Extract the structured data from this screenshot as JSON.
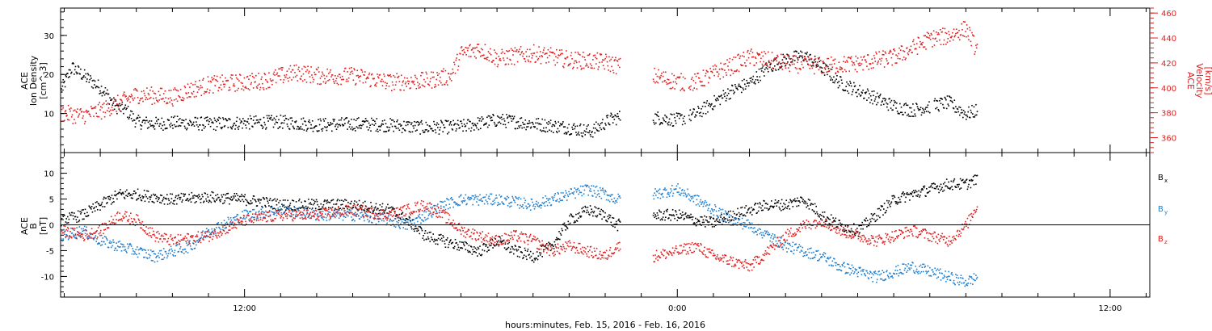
{
  "time_axis": {
    "label": "hours:minutes, Feb. 15, 2016 - Feb. 16, 2016",
    "ticks": [
      {
        "hour": 12,
        "label": "12:00"
      },
      {
        "hour": 24,
        "label": "0:00"
      },
      {
        "hour": 36,
        "label": "12:00"
      }
    ]
  },
  "colors": {
    "black": "#000000",
    "red": "#e02020",
    "blue": "#1e7fd0"
  },
  "chart_data": [
    {
      "type": "scatter",
      "panel": "top",
      "left_axis": {
        "label_line1": "ACE",
        "label_line2": "Ion Density",
        "label_line3": "[cm^-3]",
        "ticks": [
          10,
          20,
          30
        ],
        "ylim": [
          0,
          37
        ]
      },
      "right_axis": {
        "label_line1": "ACE",
        "label_line2": "Velocity",
        "label_line3": "[km/s]",
        "ticks": [
          360,
          380,
          400,
          420,
          440,
          460
        ],
        "ylim": [
          348,
          464
        ]
      },
      "x_range_hours": [
        6.9,
        37.1
      ],
      "series": [
        {
          "key": "density",
          "axis": "left",
          "color": "#000000",
          "points": [
            [
              6.9,
              16
            ],
            [
              7.2,
              22
            ],
            [
              7.5,
              20
            ],
            [
              7.8,
              18
            ],
            [
              8.1,
              16
            ],
            [
              8.4,
              12
            ],
            [
              8.7,
              11
            ],
            [
              9.0,
              8
            ],
            [
              9.5,
              7.5
            ],
            [
              10.0,
              7.8
            ],
            [
              11.0,
              7.5
            ],
            [
              12.0,
              7.8
            ],
            [
              13.0,
              8
            ],
            [
              14.0,
              7.2
            ],
            [
              15.0,
              7.5
            ],
            [
              16.0,
              7.2
            ],
            [
              17.0,
              6.5
            ],
            [
              18.0,
              6.8
            ],
            [
              19.0,
              8.5
            ],
            [
              20.0,
              7.5
            ],
            [
              21.0,
              6.5
            ],
            [
              21.6,
              5.5
            ],
            [
              22.1,
              8.5
            ],
            [
              22.5,
              9.5
            ],
            [
              23.5,
              9
            ],
            [
              24.0,
              8.5
            ],
            [
              24.5,
              10
            ],
            [
              25.0,
              13
            ],
            [
              25.5,
              16
            ],
            [
              26.0,
              18
            ],
            [
              26.5,
              22
            ],
            [
              27.0,
              24
            ],
            [
              27.5,
              25
            ],
            [
              28.0,
              22
            ],
            [
              28.5,
              18
            ],
            [
              29.0,
              16
            ],
            [
              29.5,
              14
            ],
            [
              30.0,
              12
            ],
            [
              30.5,
              11
            ],
            [
              31.0,
              12
            ],
            [
              31.5,
              13
            ],
            [
              32.0,
              10
            ],
            [
              32.3,
              11
            ]
          ],
          "gaps": [
            [
              22.4,
              23.3
            ],
            [
              24.2,
              24.3
            ],
            [
              31.0,
              31.1
            ]
          ]
        },
        {
          "key": "velocity",
          "axis": "right",
          "color": "#e02020",
          "points": [
            [
              6.9,
              380
            ],
            [
              7.5,
              378
            ],
            [
              8.0,
              382
            ],
            [
              8.5,
              388
            ],
            [
              9.0,
              395
            ],
            [
              10.0,
              393
            ],
            [
              10.4,
              398
            ],
            [
              11.0,
              403
            ],
            [
              12.0,
              405
            ],
            [
              12.5,
              406
            ],
            [
              13.0,
              410
            ],
            [
              13.5,
              413
            ],
            [
              14.0,
              410
            ],
            [
              15.0,
              410
            ],
            [
              16.0,
              405
            ],
            [
              17.0,
              406
            ],
            [
              17.7,
              410
            ],
            [
              18.0,
              428
            ],
            [
              18.5,
              432
            ],
            [
              19.0,
              424
            ],
            [
              20.0,
              428
            ],
            [
              21.0,
              423
            ],
            [
              22.0,
              421
            ],
            [
              23.3,
              410
            ],
            [
              24.0,
              405
            ],
            [
              24.5,
              405
            ],
            [
              25.0,
              412
            ],
            [
              25.5,
              418
            ],
            [
              26.0,
              425
            ],
            [
              27.0,
              420
            ],
            [
              28.0,
              418
            ],
            [
              29.0,
              420
            ],
            [
              30.0,
              425
            ],
            [
              30.5,
              432
            ],
            [
              31.0,
              440
            ],
            [
              31.5,
              442
            ],
            [
              32.0,
              448
            ],
            [
              32.3,
              430
            ]
          ],
          "gaps": [
            [
              22.4,
              23.3
            ],
            [
              24.2,
              24.3
            ]
          ]
        }
      ]
    },
    {
      "type": "scatter",
      "panel": "bottom",
      "left_axis": {
        "label_line1": "ACE",
        "label_line2": "B",
        "label_line3": "[nT]",
        "ticks": [
          -10,
          -5,
          0,
          5,
          10
        ],
        "ylim": [
          -14,
          14
        ]
      },
      "x_range_hours": [
        6.9,
        37.1
      ],
      "zero_line": true,
      "series": [
        {
          "name": "Bx",
          "color": "#000000",
          "points": [
            [
              6.9,
              1
            ],
            [
              7.5,
              2
            ],
            [
              8.0,
              4
            ],
            [
              8.5,
              6
            ],
            [
              9.0,
              6
            ],
            [
              10.0,
              5
            ],
            [
              11.0,
              5.5
            ],
            [
              12.0,
              5
            ],
            [
              13.0,
              4
            ],
            [
              14.0,
              4
            ],
            [
              15.0,
              4
            ],
            [
              16.0,
              3
            ],
            [
              16.5,
              1
            ],
            [
              17.0,
              -2
            ],
            [
              17.5,
              -3
            ],
            [
              18.0,
              -4
            ],
            [
              18.5,
              -5
            ],
            [
              19.0,
              -3
            ],
            [
              19.5,
              -5
            ],
            [
              20.0,
              -6
            ],
            [
              20.5,
              -4
            ],
            [
              21.0,
              1
            ],
            [
              21.5,
              3
            ],
            [
              22.0,
              2
            ],
            [
              22.3,
              0
            ],
            [
              23.3,
              2
            ],
            [
              24.0,
              2
            ],
            [
              24.5,
              1
            ],
            [
              25.0,
              0.5
            ],
            [
              25.5,
              2
            ],
            [
              26.0,
              3
            ],
            [
              26.5,
              4
            ],
            [
              27.0,
              4
            ],
            [
              27.5,
              5
            ],
            [
              28.0,
              2
            ],
            [
              28.5,
              0
            ],
            [
              29.0,
              -1
            ],
            [
              29.5,
              2
            ],
            [
              30.0,
              5
            ],
            [
              30.5,
              6
            ],
            [
              31.0,
              7
            ],
            [
              31.5,
              8
            ],
            [
              32.0,
              8
            ],
            [
              32.3,
              9
            ]
          ],
          "gaps": [
            [
              22.4,
              23.3
            ]
          ]
        },
        {
          "name": "By",
          "color": "#1e7fd0",
          "points": [
            [
              6.9,
              -2
            ],
            [
              7.5,
              -1
            ],
            [
              8.0,
              -3
            ],
            [
              8.5,
              -4
            ],
            [
              9.0,
              -5
            ],
            [
              9.5,
              -6
            ],
            [
              10.0,
              -5
            ],
            [
              10.5,
              -4
            ],
            [
              11.0,
              -1
            ],
            [
              12.0,
              2
            ],
            [
              13.0,
              3
            ],
            [
              14.0,
              2
            ],
            [
              15.0,
              2
            ],
            [
              16.0,
              1
            ],
            [
              16.5,
              0
            ],
            [
              17.0,
              2
            ],
            [
              17.5,
              4
            ],
            [
              18.0,
              5
            ],
            [
              19.0,
              5
            ],
            [
              20.0,
              4
            ],
            [
              20.5,
              5
            ],
            [
              21.0,
              6
            ],
            [
              21.5,
              7
            ],
            [
              22.0,
              6
            ],
            [
              22.3,
              5
            ],
            [
              23.3,
              6
            ],
            [
              24.0,
              7
            ],
            [
              24.5,
              5
            ],
            [
              25.0,
              3
            ],
            [
              25.5,
              1
            ],
            [
              26.0,
              0
            ],
            [
              26.5,
              -2
            ],
            [
              27.0,
              -4
            ],
            [
              27.5,
              -5
            ],
            [
              28.0,
              -6
            ],
            [
              28.5,
              -8
            ],
            [
              29.0,
              -9
            ],
            [
              29.5,
              -10
            ],
            [
              30.0,
              -9
            ],
            [
              30.5,
              -8
            ],
            [
              31.0,
              -9
            ],
            [
              31.5,
              -10
            ],
            [
              32.0,
              -11
            ],
            [
              32.3,
              -10
            ]
          ],
          "gaps": [
            [
              22.4,
              23.3
            ]
          ]
        },
        {
          "name": "Bz",
          "color": "#e02020",
          "points": [
            [
              6.9,
              -1
            ],
            [
              7.5,
              -2
            ],
            [
              8.0,
              -1
            ],
            [
              8.5,
              2
            ],
            [
              9.0,
              1
            ],
            [
              9.5,
              -2
            ],
            [
              10.0,
              -3
            ],
            [
              11.0,
              -2
            ],
            [
              12.0,
              1
            ],
            [
              13.0,
              2
            ],
            [
              14.0,
              2
            ],
            [
              15.0,
              3
            ],
            [
              16.0,
              2
            ],
            [
              17.0,
              4
            ],
            [
              17.5,
              2
            ],
            [
              18.0,
              -1
            ],
            [
              18.5,
              -2
            ],
            [
              19.0,
              -3
            ],
            [
              19.5,
              -2
            ],
            [
              20.0,
              -3
            ],
            [
              20.5,
              -5
            ],
            [
              21.0,
              -4
            ],
            [
              21.5,
              -5
            ],
            [
              22.0,
              -6
            ],
            [
              22.3,
              -4
            ],
            [
              23.3,
              -6
            ],
            [
              24.0,
              -5
            ],
            [
              24.5,
              -4
            ],
            [
              25.0,
              -6
            ],
            [
              25.5,
              -7
            ],
            [
              26.0,
              -8
            ],
            [
              26.5,
              -5
            ],
            [
              27.0,
              -2
            ],
            [
              27.5,
              0
            ],
            [
              28.0,
              1
            ],
            [
              28.5,
              -1
            ],
            [
              29.0,
              -2
            ],
            [
              29.5,
              -3
            ],
            [
              30.0,
              -2
            ],
            [
              30.5,
              -1
            ],
            [
              31.0,
              -2
            ],
            [
              31.5,
              -3
            ],
            [
              32.0,
              0
            ],
            [
              32.3,
              4
            ]
          ],
          "gaps": [
            [
              22.4,
              23.3
            ]
          ]
        }
      ]
    }
  ],
  "legend_bottom": [
    {
      "label": "B",
      "sub": "x",
      "color": "#000000"
    },
    {
      "label": "B",
      "sub": "y",
      "color": "#1e7fd0"
    },
    {
      "label": "B",
      "sub": "z",
      "color": "#e02020"
    }
  ]
}
